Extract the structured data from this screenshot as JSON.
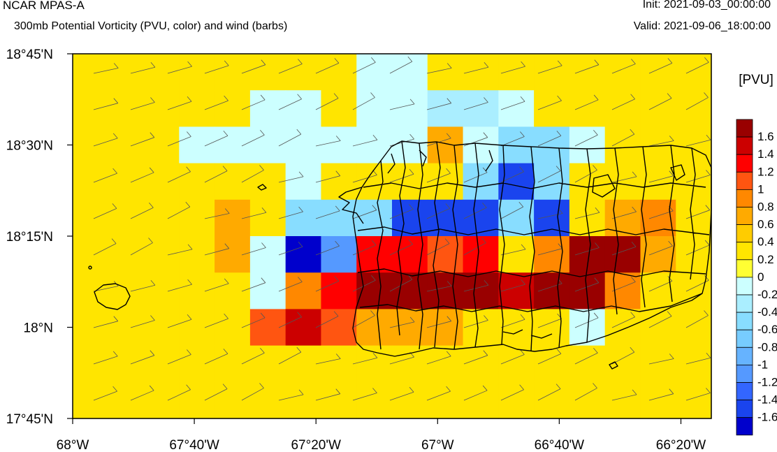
{
  "header": {
    "model": "NCAR MPAS-A",
    "field": "300mb Potential Vorticity (PVU, color) and wind (barbs)",
    "init": "Init: 2021-09-03_00:00:00",
    "valid": "Valid: 2021-09-06_18:00:00"
  },
  "map": {
    "lat_ticks": [
      {
        "label": "18°45'N",
        "value": 18.75
      },
      {
        "label": "18°30'N",
        "value": 18.5
      },
      {
        "label": "18°15'N",
        "value": 18.25
      },
      {
        "label": "18°N",
        "value": 18.0
      },
      {
        "label": "17°45'N",
        "value": 17.75
      }
    ],
    "lon_ticks": [
      {
        "label": "68°W",
        "value": -68.0
      },
      {
        "label": "67°40'W",
        "value": -67.6667
      },
      {
        "label": "67°20'W",
        "value": -67.3333
      },
      {
        "label": "67°W",
        "value": -67.0
      },
      {
        "label": "66°40'W",
        "value": -66.6667
      },
      {
        "label": "66°20'W",
        "value": -66.3333
      }
    ],
    "extent": {
      "lon_min": -68.0,
      "lon_max": -66.25,
      "lat_min": 17.75,
      "lat_max": 18.75
    }
  },
  "colorbar": {
    "units": "[PVU]",
    "labels": [
      "1.6",
      "1.4",
      "1.2",
      "1",
      "0.8",
      "0.6",
      "0.4",
      "0.2",
      "0",
      "-0.2",
      "-0.4",
      "-0.6",
      "-0.8",
      "-1",
      "-1.2",
      "-1.4",
      "-1.6"
    ],
    "colors": [
      "#990000",
      "#cc0000",
      "#ff0000",
      "#ff5511",
      "#ff8800",
      "#ffaa00",
      "#ffcc00",
      "#ffe500",
      "#ffff33",
      "#ccffff",
      "#aaeeff",
      "#88ddff",
      "#77ccff",
      "#66b3ff",
      "#5599ff",
      "#3366ff",
      "#1a44ee",
      "#0000cc"
    ]
  }
}
